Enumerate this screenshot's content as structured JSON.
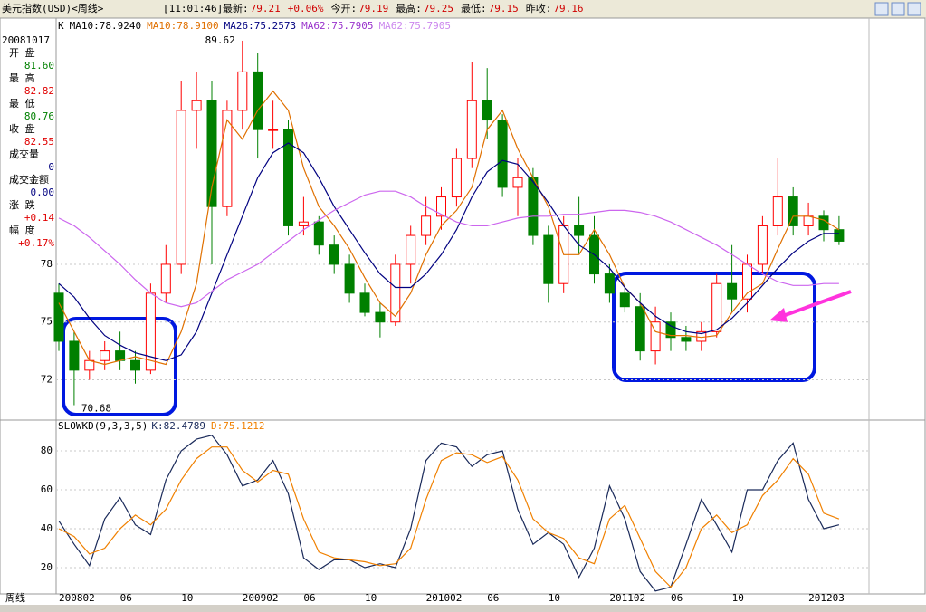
{
  "header": {
    "title": "美元指数(USD)<周线>",
    "time": "[11:01:46]",
    "fields": [
      {
        "label": "最新:",
        "value": "79.21"
      },
      {
        "label": "",
        "value": "+0.06%"
      },
      {
        "label": "今开:",
        "value": "79.19"
      },
      {
        "label": "最高:",
        "value": "79.25"
      },
      {
        "label": "最低:",
        "value": "79.15"
      },
      {
        "label": "昨收:",
        "value": "79.16"
      }
    ]
  },
  "info_panel": {
    "date": "20081017",
    "rows": [
      {
        "label": "开 盘",
        "value": "81.60"
      },
      {
        "label": "最 高",
        "value": "82.82"
      },
      {
        "label": "最 低",
        "value": "80.76"
      },
      {
        "label": "收 盘",
        "value": "82.55"
      },
      {
        "label": "成交量",
        "value": "0"
      },
      {
        "label": "成交金额",
        "value": "0.00"
      },
      {
        "label": "涨 跌",
        "value": "+0.14"
      },
      {
        "label": "幅 度",
        "value": "+0.17%"
      }
    ]
  },
  "footer": {
    "period": "周线"
  },
  "chart_data": [
    {
      "type": "candlestick",
      "legend": [
        "K",
        "MA10:78.9240",
        "MA10:78.9100",
        "MA26:75.2573",
        "MA62:75.7905",
        "MA62:75.7905"
      ],
      "legend_colors": [
        "#000000",
        "#000000",
        "#e07000",
        "#000080",
        "#9933cc",
        "#cc88ee"
      ],
      "up_color": "#ff0000",
      "down_color": "#008000",
      "open": [
        76.5,
        74,
        72.5,
        73,
        73.5,
        73,
        72.5,
        76.5,
        78,
        86,
        86.5,
        81,
        86,
        88,
        85,
        85,
        80,
        80.2,
        79,
        78,
        76.5,
        75.5,
        75,
        78,
        79.5,
        80.5,
        81.5,
        83.5,
        86.5,
        85.5,
        82,
        82.5,
        79.5,
        77,
        80,
        79.5,
        77.5,
        76.5,
        75.8,
        73.5,
        75,
        74.2,
        74,
        74.5,
        77,
        76.2,
        78,
        80,
        81.5,
        80,
        80.5,
        79.8
      ],
      "high": [
        77,
        74.5,
        73.5,
        74,
        74.5,
        73.5,
        77,
        79,
        87.5,
        88,
        87.5,
        86.5,
        89.62,
        89,
        86.5,
        85.5,
        81.5,
        80.5,
        79.5,
        78.5,
        77,
        76,
        78.5,
        80,
        81.5,
        82,
        84,
        88.5,
        88.2,
        85.8,
        83.5,
        83,
        80,
        80.5,
        81.5,
        80.5,
        78,
        77,
        76.5,
        75.8,
        75.5,
        74.8,
        75,
        77.5,
        79,
        78.5,
        80.5,
        83.5,
        82,
        81.2,
        80.8,
        80.5
      ],
      "low": [
        73.5,
        70.68,
        72,
        72.5,
        72.5,
        71.8,
        72.3,
        76,
        77.5,
        84,
        78,
        80.5,
        85,
        83.5,
        84,
        79.5,
        79.5,
        78.5,
        77.5,
        76,
        75.3,
        74.2,
        74.8,
        77,
        79,
        79.8,
        81,
        83,
        84.5,
        81.5,
        80.5,
        79,
        76,
        76.5,
        78.5,
        77,
        76,
        75.5,
        73,
        72.8,
        73.5,
        73.5,
        73.5,
        74.2,
        75.5,
        75.5,
        77.5,
        79.5,
        79.5,
        79.5,
        79.2,
        79
      ],
      "close": [
        74,
        72.5,
        73,
        73.5,
        73,
        72.5,
        76.5,
        78,
        86,
        86.5,
        81,
        86,
        88,
        85,
        85,
        80,
        80.2,
        79,
        78,
        76.5,
        75.5,
        75,
        78,
        79.5,
        80.5,
        81.5,
        83.5,
        86.5,
        85.5,
        82,
        82.5,
        79.5,
        77,
        80,
        79.5,
        77.5,
        76.5,
        75.8,
        73.5,
        75,
        74.2,
        74,
        74.5,
        77,
        76.2,
        78,
        80,
        81.5,
        80,
        80.5,
        79.8,
        79.2
      ],
      "lines": [
        {
          "color": "#e07000",
          "values": [
            76,
            74.5,
            73,
            72.8,
            73,
            73.2,
            73,
            72.8,
            74.5,
            77,
            82,
            85.5,
            84.5,
            86,
            87,
            86,
            83,
            81,
            80,
            78.8,
            77.3,
            76,
            75.3,
            76.5,
            78.5,
            80,
            80.8,
            82,
            85,
            86,
            84,
            82.5,
            81,
            78.5,
            78.5,
            79.8,
            78.5,
            76.8,
            76,
            74.5,
            74.3,
            74.3,
            74.2,
            74.3,
            75.5,
            76.5,
            77,
            78.8,
            80.5,
            80.5,
            80.3,
            79.8
          ]
        },
        {
          "color": "#000080",
          "values": [
            77,
            76.3,
            75.2,
            74.3,
            73.8,
            73.4,
            73.2,
            73,
            73.3,
            74.5,
            76.5,
            78.5,
            80.5,
            82.5,
            83.8,
            84.3,
            83.8,
            82.5,
            81,
            79.8,
            78.6,
            77.5,
            76.8,
            76.8,
            77.5,
            78.5,
            79.8,
            81.5,
            82.8,
            83.4,
            83.2,
            82.3,
            81.2,
            80,
            79,
            78.5,
            77.8,
            76.8,
            76,
            75.3,
            74.8,
            74.5,
            74.4,
            74.6,
            75.2,
            76,
            76.9,
            77.8,
            78.6,
            79.2,
            79.6,
            79.6
          ]
        },
        {
          "color": "#cc66ee",
          "values": [
            80.4,
            80,
            79.4,
            78.7,
            78,
            77.2,
            76.5,
            76,
            75.8,
            76,
            76.6,
            77.2,
            77.6,
            78,
            78.6,
            79.2,
            79.8,
            80.3,
            80.8,
            81.2,
            81.6,
            81.8,
            81.8,
            81.5,
            81,
            80.6,
            80.2,
            80,
            80,
            80.2,
            80.4,
            80.5,
            80.5,
            80.6,
            80.6,
            80.7,
            80.8,
            80.8,
            80.7,
            80.5,
            80.2,
            79.8,
            79.4,
            79,
            78.5,
            78,
            77.5,
            77.1,
            76.9,
            76.9,
            77,
            77
          ]
        }
      ],
      "annotations": [
        {
          "text": "89.62",
          "index": 12
        },
        {
          "text": "70.68",
          "index": 1
        }
      ],
      "ylim": [
        70,
        90.7
      ],
      "yticks": [
        72,
        75,
        78
      ],
      "grid": true
    },
    {
      "type": "line",
      "title": "SLOWKD(9,3,3,5)",
      "legend": [
        "K:82.4789",
        "D:75.1212"
      ],
      "categories": [
        "200802",
        null,
        null,
        null,
        "06",
        null,
        null,
        null,
        "10",
        null,
        null,
        null,
        "200902",
        null,
        null,
        null,
        "06",
        null,
        null,
        null,
        "10",
        null,
        null,
        null,
        "201002",
        null,
        null,
        null,
        "06",
        null,
        null,
        null,
        "10",
        null,
        null,
        null,
        "201102",
        null,
        null,
        null,
        "06",
        null,
        null,
        null,
        "10",
        null,
        null,
        null,
        null,
        "201203",
        null,
        null
      ],
      "series": [
        {
          "color": "#1a2a5a",
          "values": [
            44,
            32,
            21,
            45,
            56,
            42,
            37,
            65,
            80,
            86,
            88,
            78,
            62,
            65,
            75,
            58,
            25,
            19,
            24,
            24,
            20,
            22,
            20,
            40,
            75,
            84,
            82,
            72,
            78,
            80,
            50,
            32,
            38,
            32,
            15,
            30,
            62,
            45,
            18,
            8,
            10,
            32,
            55,
            42,
            28,
            60,
            60,
            75,
            84,
            55,
            40,
            42
          ]
        },
        {
          "color": "#f08000",
          "values": [
            40,
            36,
            27,
            30,
            40,
            47,
            42,
            50,
            65,
            76,
            82,
            82,
            70,
            64,
            70,
            68,
            45,
            28,
            25,
            24,
            23,
            21,
            22,
            30,
            55,
            75,
            79,
            78,
            74,
            77,
            65,
            45,
            38,
            35,
            25,
            22,
            45,
            52,
            35,
            18,
            10,
            20,
            40,
            47,
            38,
            42,
            57,
            65,
            76,
            68,
            48,
            45
          ]
        }
      ],
      "ylim": [
        9.3,
        94.4
      ],
      "yticks": [
        20,
        40,
        60,
        80
      ],
      "grid": true
    }
  ]
}
